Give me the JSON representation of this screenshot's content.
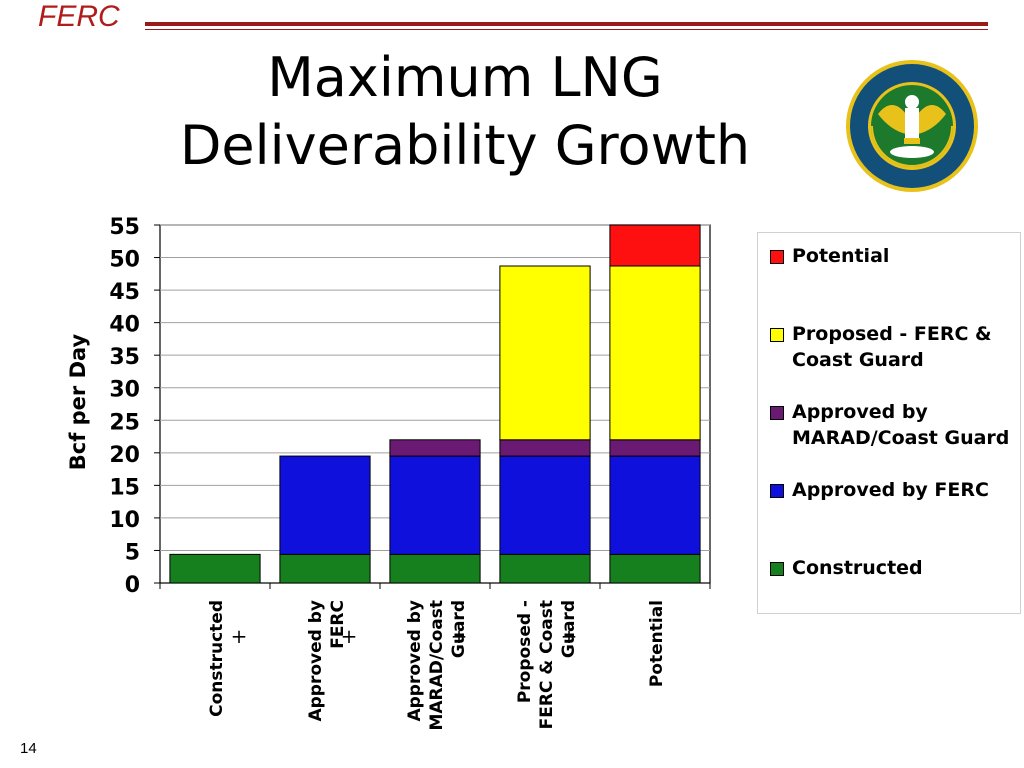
{
  "header": {
    "brand": "FERC",
    "title_line1": "Maximum LNG",
    "title_line2": "Deliverability Growth",
    "seal_text": "DEPARTMENT OF ENERGY · FEDERAL ENERGY REGULATORY COMMISSION"
  },
  "colors": {
    "brand": "#b01b1b",
    "constructed": "#16801e",
    "approved_ferc": "#1010dd",
    "approved_marad": "#6a1a72",
    "proposed": "#ffff00",
    "potential": "#ff1010"
  },
  "chart_data": {
    "type": "bar",
    "stacked": true,
    "title": "Maximum LNG Deliverability Growth",
    "ylabel": "Bcf per Day",
    "xlabel": "",
    "ylim": [
      0,
      55
    ],
    "yticks": [
      0,
      5,
      10,
      15,
      20,
      25,
      30,
      35,
      40,
      45,
      50,
      55
    ],
    "grid": true,
    "legend_position": "right",
    "categories": [
      [
        "Constructed"
      ],
      [
        "Approved by",
        "FERC"
      ],
      [
        "Approved by",
        "MARAD/Coast",
        "Guard"
      ],
      [
        "Proposed -",
        "FERC & Coast",
        "Guard"
      ],
      [
        "Potential"
      ]
    ],
    "series": [
      {
        "name": "Constructed",
        "color": "#16801e",
        "values": [
          4.4,
          4.4,
          4.4,
          4.4,
          4.4
        ]
      },
      {
        "name": "Approved by FERC",
        "color": "#1010dd",
        "values": [
          0,
          15.1,
          15.1,
          15.1,
          15.1
        ]
      },
      {
        "name": "Approved by MARAD/Coast Guard",
        "color": "#6a1a72",
        "values": [
          0,
          0,
          2.5,
          2.5,
          2.5
        ]
      },
      {
        "name": "Proposed - FERC & Coast Guard",
        "color": "#ffff00",
        "values": [
          0,
          0,
          0,
          26.7,
          26.7
        ]
      },
      {
        "name": "Potential",
        "color": "#ff1010",
        "values": [
          0,
          0,
          0,
          0,
          6.3
        ]
      }
    ],
    "annotations": [
      "+",
      "+",
      "+",
      "+"
    ]
  },
  "legend": {
    "items": [
      {
        "label": "Potential",
        "color": "#ff1010"
      },
      {
        "label": "Proposed - FERC & Coast Guard",
        "color": "#ffff00"
      },
      {
        "label": "Approved by MARAD/Coast Guard",
        "color": "#6a1a72"
      },
      {
        "label": "Approved by FERC",
        "color": "#1010dd"
      },
      {
        "label": "Constructed",
        "color": "#16801e"
      }
    ]
  },
  "footer": {
    "page_number": "14"
  }
}
